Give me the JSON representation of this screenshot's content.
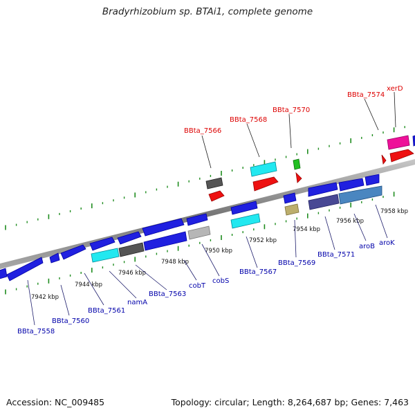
{
  "title": "Bradyrhizobium sp. BTAi1, complete genome",
  "footer": {
    "accession": "Accession: NC_009485",
    "topology": "Topology: circular; Length: 8,264,687 bp; Genes: 7,463"
  },
  "colors": {
    "backbone": "#8c8c8c",
    "tick": "#1e8c1e",
    "upper_label": "#dd0000",
    "lower_label": "#0000aa",
    "kbp_label": "#111111",
    "leader": "#1a1a6a"
  },
  "kbp_labels": [
    "7942 kbp",
    "7944 kbp",
    "7946 kbp",
    "7948 kbp",
    "7950 kbp",
    "7952 kbp",
    "7954 kbp",
    "7956 kbp",
    "7958 kbp"
  ],
  "upper_genes": [
    "BBta_7566",
    "BBta_7568",
    "BBta_7570",
    "BBta_7574",
    "xerD"
  ],
  "lower_genes": [
    "BBta_7558",
    "BBta_7560",
    "BBta_7561",
    "namA",
    "BBta_7563",
    "cobT",
    "cobS",
    "BBta_7567",
    "BBta_7569",
    "BBta_7571",
    "aroB",
    "aroK"
  ]
}
